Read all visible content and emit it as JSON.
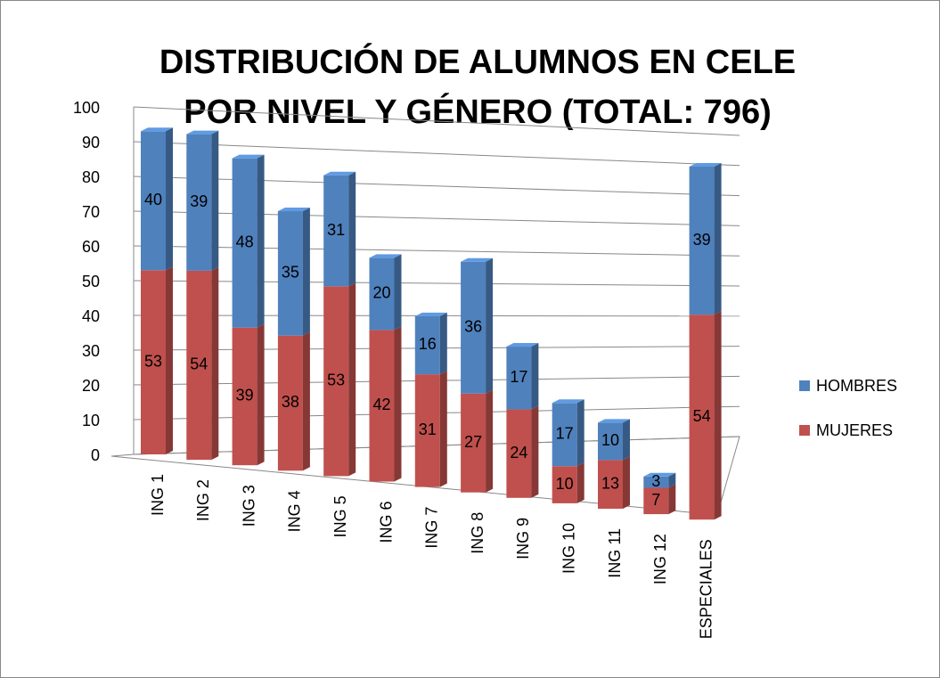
{
  "chart_data": {
    "type": "bar3d_stacked",
    "title": [
      "DISTRIBUCIÓN DE ALUMNOS EN CELE",
      "POR NIVEL Y GÉNERO (TOTAL: 796)"
    ],
    "categories": [
      "ING 1",
      "ING 2",
      "ING 3",
      "ING 4",
      "ING 5",
      "ING 6",
      "ING 7",
      "ING 8",
      "ING 9",
      "ING 10",
      "ING 11",
      "ING 12",
      "ESPECIALES"
    ],
    "series": [
      {
        "name": "MUJERES",
        "color": "#c0504d",
        "values": [
          53,
          54,
          39,
          38,
          53,
          42,
          31,
          27,
          24,
          10,
          13,
          7,
          54
        ]
      },
      {
        "name": "HOMBRES",
        "color": "#4f81bd",
        "values": [
          40,
          39,
          48,
          35,
          31,
          20,
          16,
          36,
          17,
          17,
          10,
          3,
          39
        ]
      }
    ],
    "ylim": [
      0,
      100
    ],
    "yticks": [
      0,
      10,
      20,
      30,
      40,
      50,
      60,
      70,
      80,
      90,
      100
    ],
    "grid": true,
    "legend": "right"
  }
}
